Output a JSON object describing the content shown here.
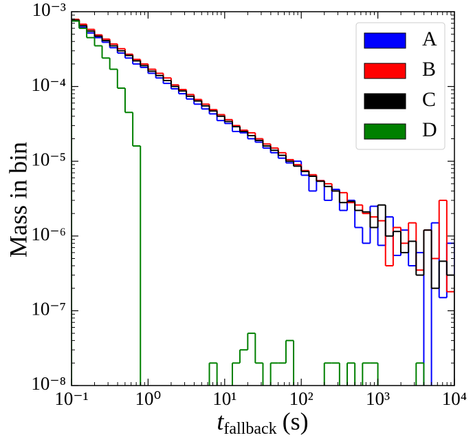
{
  "chart_data": {
    "type": "histogram",
    "log_x": true,
    "log_y": true,
    "y_label": "Mass in bin",
    "x_label": {
      "symbol": "t",
      "subscript": "fallback",
      "unit": "(s)"
    },
    "legend": "upper right",
    "xlim": [
      0.1,
      10000
    ],
    "ylim": [
      1e-08,
      0.001
    ],
    "xticks": [
      {
        "value": 0.1,
        "label": "10⁻¹"
      },
      {
        "value": 1,
        "label": "10⁰"
      },
      {
        "value": 10,
        "label": "10¹"
      },
      {
        "value": 100,
        "label": "10²"
      },
      {
        "value": 1000,
        "label": "10³"
      },
      {
        "value": 10000,
        "label": "10⁴"
      }
    ],
    "yticks": [
      {
        "value": 1e-08,
        "label": "10⁻⁸"
      },
      {
        "value": 1e-07,
        "label": "10⁻⁷"
      },
      {
        "value": 1e-06,
        "label": "10⁻⁶"
      },
      {
        "value": 1e-05,
        "label": "10⁻⁵"
      },
      {
        "value": 0.0001,
        "label": "10⁻⁴"
      },
      {
        "value": 0.001,
        "label": "10⁻³"
      }
    ],
    "bins": [
      0.1,
      0.126,
      0.158,
      0.2,
      0.251,
      0.316,
      0.398,
      0.501,
      0.631,
      0.794,
      1,
      1.26,
      1.58,
      2,
      2.51,
      3.16,
      3.98,
      5.01,
      6.31,
      7.94,
      10,
      12.6,
      15.8,
      20,
      25.1,
      31.6,
      39.8,
      50.1,
      63.1,
      79.4,
      100,
      126,
      158,
      200,
      251,
      316,
      398,
      501,
      631,
      794,
      1000,
      1259,
      1585,
      1995,
      2512,
      3162,
      3981,
      5012,
      6310,
      7943,
      10000
    ],
    "series": [
      {
        "name": "A",
        "color": "#0000ff",
        "values": [
          0.00075,
          0.00062,
          0.00052,
          0.00045,
          0.00039,
          0.00033,
          0.00028,
          0.00024,
          0.0002,
          0.00018,
          0.00015,
          0.00013,
          0.00011,
          9.3e-05,
          8e-05,
          6.8e-05,
          5.8e-05,
          5e-05,
          4.3e-05,
          3.5e-05,
          3.2e-05,
          2.5e-05,
          2.4e-05,
          2e-05,
          1.8e-05,
          1.5e-05,
          1.3e-05,
          1.1e-05,
          9.5e-06,
          1e-05,
          6.5e-06,
          4e-06,
          5.5e-06,
          3e-06,
          4.2e-06,
          2.2e-06,
          3e-06,
          1.3e-06,
          8e-07,
          2.5e-06,
          7.5e-07,
          1.8e-06,
          5.5e-07,
          1.2e-06,
          4e-07,
          6e-07,
          0,
          1.5e-06,
          1.5e-07,
          8e-07
        ]
      },
      {
        "name": "B",
        "color": "#ff0000",
        "values": [
          0.00079,
          0.00068,
          0.00058,
          0.00049,
          0.00043,
          0.00037,
          0.00032,
          0.00027,
          0.00023,
          0.0002,
          0.00017,
          0.00015,
          0.00013,
          0.000105,
          9.1e-05,
          7.8e-05,
          6.7e-05,
          5.8e-05,
          4.9e-05,
          4.2e-05,
          3.6e-05,
          3e-05,
          2.6e-05,
          2.4e-05,
          2e-05,
          1.7e-05,
          1.5e-05,
          1.3e-05,
          1.05e-05,
          9e-06,
          7.5e-06,
          6.6e-06,
          5.5e-06,
          5e-06,
          4e-06,
          3.8e-06,
          2.8e-06,
          2.6e-06,
          2e-06,
          1.8e-06,
          1.6e-06,
          4e-07,
          1.3e-06,
          8e-07,
          1.5e-06,
          3.5e-07,
          1.2e-06,
          5e-07,
          3e-06,
          1.8e-07
        ]
      },
      {
        "name": "C",
        "color": "#000000",
        "values": [
          0.00077,
          0.00065,
          0.00055,
          0.00047,
          0.00041,
          0.00035,
          0.0003,
          0.00026,
          0.00022,
          0.00019,
          0.00016,
          0.00014,
          0.00012,
          0.0001,
          8.7e-05,
          7.4e-05,
          6.4e-05,
          5.5e-05,
          4.7e-05,
          4e-05,
          3.4e-05,
          2.9e-05,
          2.5e-05,
          2.2e-05,
          1.9e-05,
          1.6e-05,
          1.4e-05,
          1.2e-05,
          1e-05,
          8.6e-06,
          7.3e-06,
          6.3e-06,
          5.4e-06,
          4.6e-06,
          4e-06,
          2.8e-06,
          2.9e-06,
          2.2e-06,
          2.1e-06,
          1.3e-06,
          2.6e-06,
          1e-06,
          1.15e-06,
          6e-07,
          8.5e-07,
          3e-07,
          1.2e-06,
          2e-07,
          4.6e-07,
          3e-07
        ]
      },
      {
        "name": "D",
        "color": "#008000",
        "values": [
          0.00075,
          0.0006,
          0.00045,
          0.00035,
          0.00024,
          0.00017,
          9.5e-05,
          4.5e-05,
          1.6e-05,
          0,
          0,
          0,
          0,
          0,
          0,
          0,
          0,
          0,
          2e-08,
          0,
          0,
          2e-08,
          3e-08,
          5e-08,
          2e-08,
          0,
          2e-08,
          2e-08,
          4e-08,
          0,
          0,
          0,
          0,
          2e-08,
          2e-08,
          0,
          2e-08,
          0,
          2e-08,
          2e-08,
          0,
          0,
          0,
          0,
          0,
          2e-08,
          0,
          0,
          0,
          0
        ]
      }
    ]
  }
}
